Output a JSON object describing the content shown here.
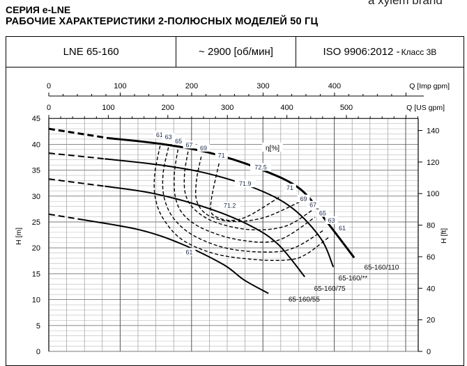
{
  "header": {
    "series": "СЕРИЯ e-LNE",
    "title": "РАБОЧИЕ ХАРАКТЕРИСТИКИ 2-ПОЛЮСНЫХ МОДЕЛЕЙ 50 ГЦ",
    "brand": "a xylem brand"
  },
  "info": {
    "model": "LNE 65-160",
    "speed": "~ 2900 [об/мин]",
    "standard": "ISO 9906:2012 - ",
    "class": "Класс 3B"
  },
  "chart_data": {
    "type": "line",
    "x_unit": "US gpm",
    "xlabel_top1": "Q [Imp gpm]",
    "xlabel_top2": "Q [US gpm]",
    "ylabel": "H [m]",
    "ylabel_right": "H [ft]",
    "imp_ticks": [
      0,
      100,
      200,
      300,
      400
    ],
    "us_ticks": [
      0,
      100,
      200,
      300,
      400,
      500
    ],
    "y_ticks": [
      0,
      5,
      10,
      15,
      20,
      25,
      30,
      35,
      40,
      45
    ],
    "ft_ticks": [
      0,
      20,
      40,
      60,
      80,
      100,
      120,
      140
    ],
    "ylim": [
      0,
      45
    ],
    "xlim_us": [
      0,
      620
    ],
    "grid": true,
    "eta_label": "η[%]",
    "series": [
      {
        "name": "65-160/110",
        "dashed_until": 100,
        "points": [
          [
            0,
            43
          ],
          [
            100,
            41.2
          ],
          [
            187,
            40.1
          ],
          [
            269,
            38.4
          ],
          [
            351,
            35.4
          ],
          [
            422,
            31.4
          ],
          [
            468,
            24.9
          ],
          [
            513,
            18.1
          ]
        ]
      },
      {
        "name": "65-160/**",
        "dashed_until": 94,
        "points": [
          [
            0,
            38.3
          ],
          [
            94,
            37.2
          ],
          [
            187,
            36.0
          ],
          [
            269,
            34.3
          ],
          [
            351,
            31.3
          ],
          [
            410,
            27.6
          ],
          [
            457,
            21.8
          ],
          [
            478,
            16.3
          ]
        ]
      },
      {
        "name": "65-160/75",
        "dashed_until": 94,
        "points": [
          [
            0,
            33.3
          ],
          [
            94,
            31.9
          ],
          [
            176,
            30.5
          ],
          [
            269,
            27.6
          ],
          [
            340,
            24.2
          ],
          [
            386,
            20.6
          ],
          [
            430,
            14.4
          ]
        ]
      },
      {
        "name": "65-160/55",
        "dashed_until": 59,
        "points": [
          [
            0,
            26.5
          ],
          [
            59,
            25.4
          ],
          [
            152,
            23.5
          ],
          [
            222,
            20.8
          ],
          [
            293,
            16.8
          ],
          [
            328,
            13.8
          ],
          [
            369,
            11.2
          ]
        ]
      }
    ],
    "series_label_pos": [
      [
        559,
        15.8
      ],
      [
        511,
        13.7
      ],
      [
        472,
        11.7
      ],
      [
        429,
        9.6
      ]
    ],
    "efficiency_curves": [
      {
        "eta": 61,
        "points": [
          [
            187,
            39.7
          ],
          [
            178,
            34.3
          ],
          [
            179,
            29.6
          ],
          [
            193,
            25.5
          ],
          [
            225,
            21.5
          ],
          [
            281,
            18.8
          ],
          [
            351,
            17.7
          ],
          [
            404,
            17.7
          ],
          [
            433,
            18.8
          ],
          [
            472,
            22.2
          ]
        ]
      },
      {
        "eta": 63,
        "points": [
          [
            201,
            39.4
          ],
          [
            192,
            34.3
          ],
          [
            194,
            29.6
          ],
          [
            211,
            25.5
          ],
          [
            246,
            22.2
          ],
          [
            304,
            19.8
          ],
          [
            375,
            19.2
          ],
          [
            416,
            20.2
          ],
          [
            463,
            23.5
          ]
        ]
      },
      {
        "eta": 65,
        "points": [
          [
            217,
            39.0
          ],
          [
            211,
            34.3
          ],
          [
            213,
            29.6
          ],
          [
            228,
            26.2
          ],
          [
            263,
            23.5
          ],
          [
            322,
            21.5
          ],
          [
            386,
            21.5
          ],
          [
            447,
            25.9
          ]
        ]
      },
      {
        "eta": 67,
        "points": [
          [
            234,
            38.6
          ],
          [
            228,
            34.3
          ],
          [
            230,
            30.2
          ],
          [
            246,
            27.3
          ],
          [
            281,
            24.9
          ],
          [
            340,
            23.5
          ],
          [
            398,
            24.2
          ],
          [
            443,
            27.3
          ]
        ]
      },
      {
        "eta": 69,
        "points": [
          [
            256,
            37.6
          ],
          [
            248,
            32.9
          ],
          [
            249,
            28.9
          ],
          [
            269,
            26.2
          ],
          [
            310,
            25.1
          ],
          [
            363,
            25.9
          ],
          [
            422,
            28.9
          ]
        ]
      },
      {
        "eta": 71,
        "points": [
          [
            286,
            36.3
          ],
          [
            275,
            30.6
          ],
          [
            272,
            27.6
          ],
          [
            278,
            26.2
          ],
          [
            304,
            25.3
          ],
          [
            336,
            26.2
          ],
          [
            390,
            30.0
          ]
        ]
      }
    ],
    "efficiency_labels": [
      {
        "text": "61",
        "x": 186,
        "y": 41.5
      },
      {
        "text": "63",
        "x": 201,
        "y": 41.1
      },
      {
        "text": "65",
        "x": 218,
        "y": 40.3
      },
      {
        "text": "67",
        "x": 236,
        "y": 39.6
      },
      {
        "text": "69",
        "x": 260,
        "y": 39.0
      },
      {
        "text": "71",
        "x": 290,
        "y": 37.6
      },
      {
        "text": "72.5",
        "x": 356,
        "y": 35.3
      },
      {
        "text": "71.9",
        "x": 330,
        "y": 32.1
      },
      {
        "text": "71.2",
        "x": 304,
        "y": 27.9
      },
      {
        "text": "71",
        "x": 405,
        "y": 31.3
      },
      {
        "text": "69",
        "x": 428,
        "y": 29.2
      },
      {
        "text": "67",
        "x": 444,
        "y": 28.0
      },
      {
        "text": "65",
        "x": 460,
        "y": 26.4
      },
      {
        "text": "63",
        "x": 475,
        "y": 25.0
      },
      {
        "text": "61",
        "x": 493,
        "y": 23.5
      },
      {
        "text": "61",
        "x": 236,
        "y": 18.9
      }
    ]
  }
}
